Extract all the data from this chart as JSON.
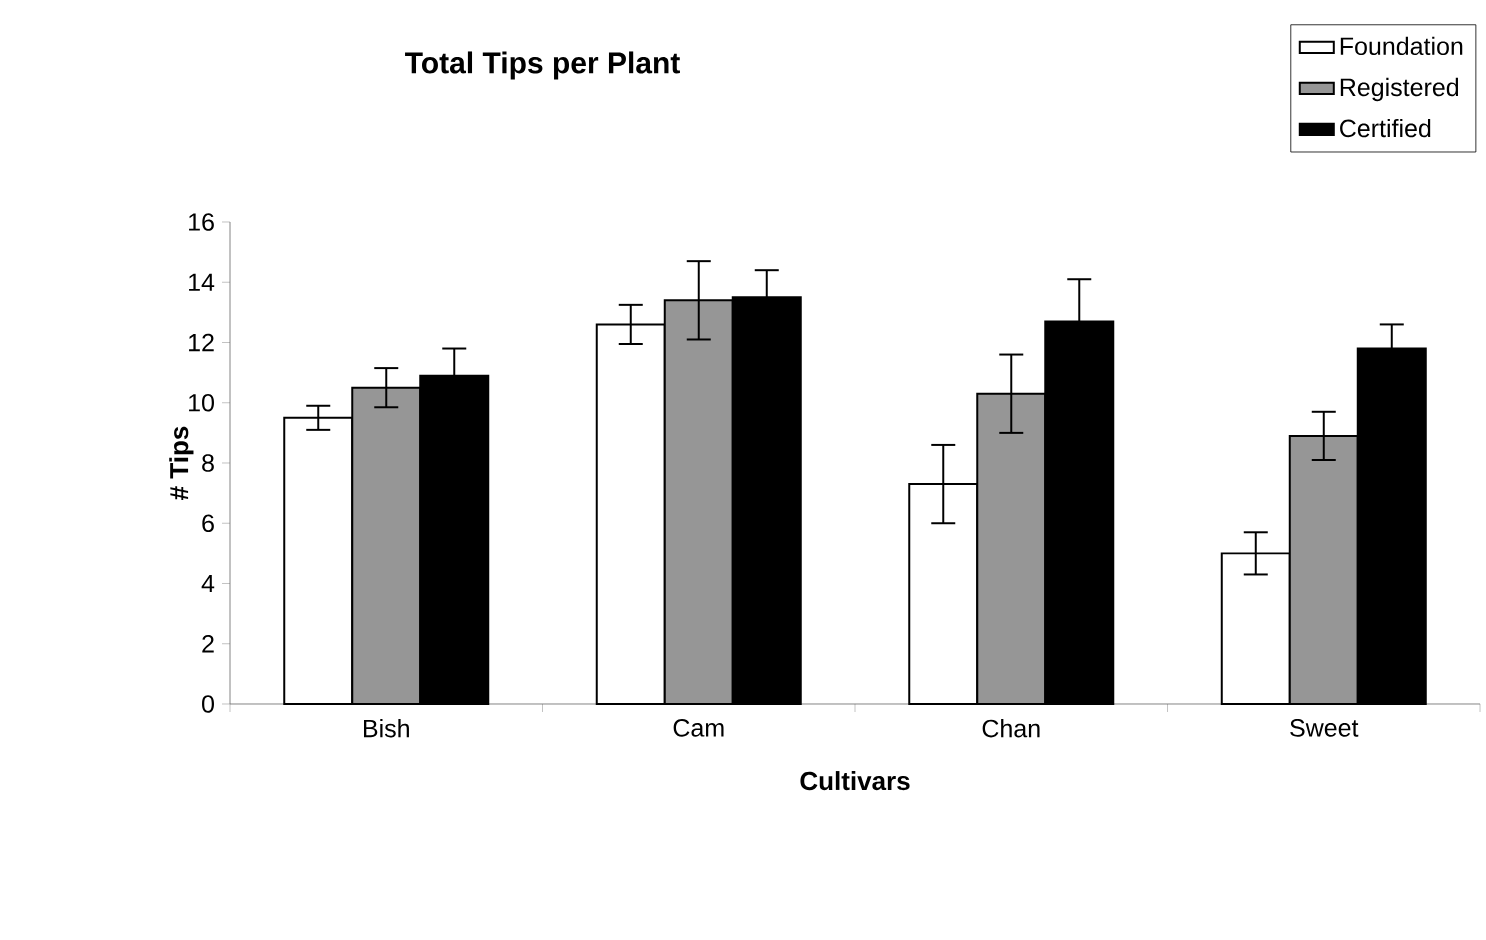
{
  "chart_data": {
    "type": "bar",
    "title": "Total Tips per Plant",
    "xlabel": "Cultivars",
    "ylabel": "# Tips",
    "categories": [
      "Bish",
      "Cam",
      "Chan",
      "Sweet"
    ],
    "series": [
      {
        "name": "Foundation",
        "color": "#ffffff",
        "values": [
          9.5,
          12.6,
          7.3,
          5.0
        ],
        "errors": [
          0.4,
          0.65,
          1.3,
          0.7
        ]
      },
      {
        "name": "Registered",
        "color": "#969696",
        "values": [
          10.5,
          13.4,
          10.3,
          8.9
        ],
        "errors": [
          0.65,
          1.3,
          1.3,
          0.8
        ]
      },
      {
        "name": "Certified",
        "color": "#000000",
        "values": [
          10.9,
          13.5,
          12.7,
          11.8
        ],
        "errors": [
          0.9,
          0.9,
          1.4,
          0.8
        ]
      }
    ],
    "ylim": [
      0,
      16
    ],
    "yticks": [
      0,
      2,
      4,
      6,
      8,
      10,
      12,
      14,
      16
    ],
    "grid": false,
    "legend": "top right"
  }
}
